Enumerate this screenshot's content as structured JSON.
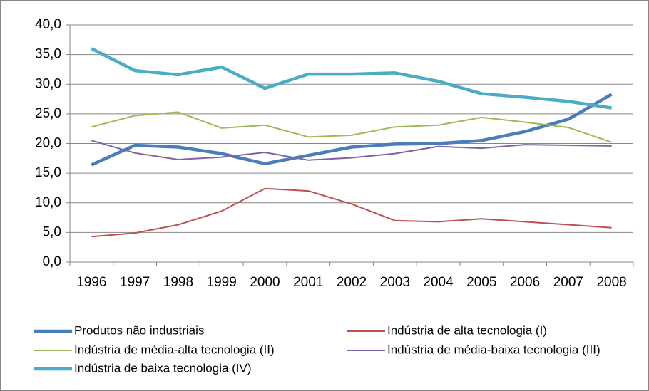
{
  "chart_data": {
    "type": "line",
    "categories": [
      "1996",
      "1997",
      "1998",
      "1999",
      "2000",
      "2001",
      "2002",
      "2003",
      "2004",
      "2005",
      "2006",
      "2007",
      "2008"
    ],
    "series": [
      {
        "name": "Produtos não industriais",
        "color": "#4a7ebb",
        "line_width": 4.5,
        "values": [
          16.4,
          19.7,
          19.4,
          18.3,
          16.6,
          18.0,
          19.4,
          19.9,
          20.0,
          20.5,
          22.0,
          24.1,
          28.3
        ]
      },
      {
        "name": "Indústria de alta tecnologia (I)",
        "color": "#c0504d",
        "line_width": 2,
        "values": [
          4.3,
          4.9,
          6.3,
          8.6,
          12.4,
          12.0,
          9.8,
          7.0,
          6.8,
          7.3,
          6.8,
          6.3,
          5.8
        ]
      },
      {
        "name": "Indústria de média-alta tecnologia (II)",
        "color": "#9bbb59",
        "line_width": 2,
        "values": [
          22.8,
          24.7,
          25.3,
          22.6,
          23.1,
          21.1,
          21.4,
          22.8,
          23.1,
          24.4,
          23.6,
          22.7,
          20.2
        ]
      },
      {
        "name": "Indústria de média-baixa tecnologia (III)",
        "color": "#8064a2",
        "line_width": 2,
        "values": [
          20.5,
          18.4,
          17.3,
          17.7,
          18.5,
          17.2,
          17.6,
          18.3,
          19.5,
          19.2,
          19.8,
          19.7,
          19.6
        ]
      },
      {
        "name": "Indústria de baixa tecnologia (IV)",
        "color": "#4bacc6",
        "line_width": 4.5,
        "values": [
          36.0,
          32.3,
          31.6,
          32.9,
          29.3,
          31.7,
          31.7,
          31.9,
          30.5,
          28.4,
          27.8,
          27.1,
          26.0
        ]
      }
    ],
    "ylim": [
      0,
      40
    ],
    "yticks": [
      {
        "value": 0,
        "label": "0,0"
      },
      {
        "value": 5,
        "label": "5,0"
      },
      {
        "value": 10,
        "label": "10,0"
      },
      {
        "value": 15,
        "label": "15,0"
      },
      {
        "value": 20,
        "label": "20,0"
      },
      {
        "value": 25,
        "label": "25,0"
      },
      {
        "value": 30,
        "label": "30,0"
      },
      {
        "value": 35,
        "label": "35,0"
      },
      {
        "value": 40,
        "label": "40,0"
      }
    ],
    "grid": true,
    "legend": "bottom"
  }
}
